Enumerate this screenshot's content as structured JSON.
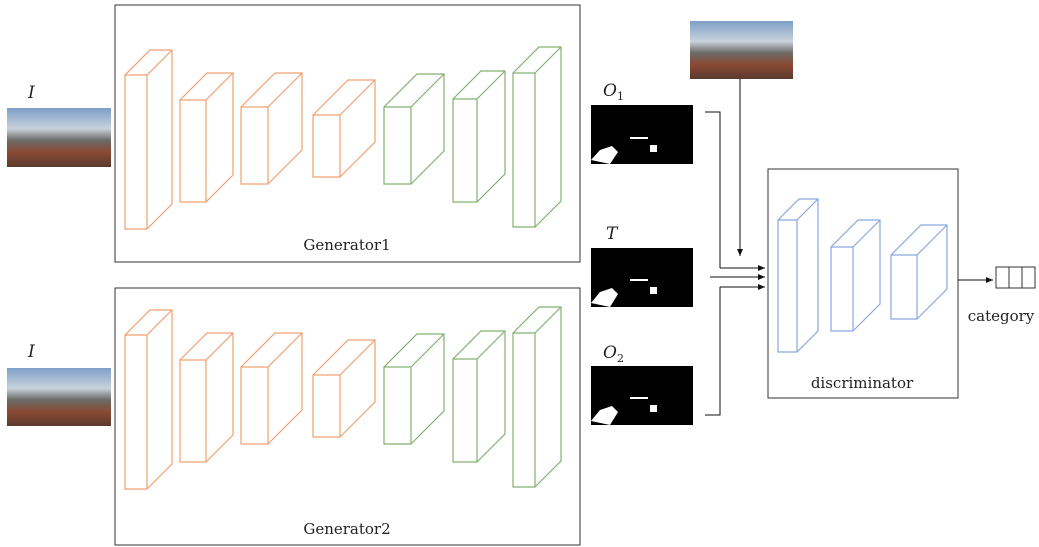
{
  "inputs": [
    {
      "label": "I"
    },
    {
      "label": "I"
    }
  ],
  "generators": [
    {
      "label": "Generator1"
    },
    {
      "label": "Generator2"
    }
  ],
  "outputs": [
    {
      "base": "O",
      "sub": "1"
    },
    {
      "base": "T"
    },
    {
      "base": "O",
      "sub": "2"
    }
  ],
  "discriminator": {
    "label": "discriminator"
  },
  "result": {
    "label": "category"
  }
}
